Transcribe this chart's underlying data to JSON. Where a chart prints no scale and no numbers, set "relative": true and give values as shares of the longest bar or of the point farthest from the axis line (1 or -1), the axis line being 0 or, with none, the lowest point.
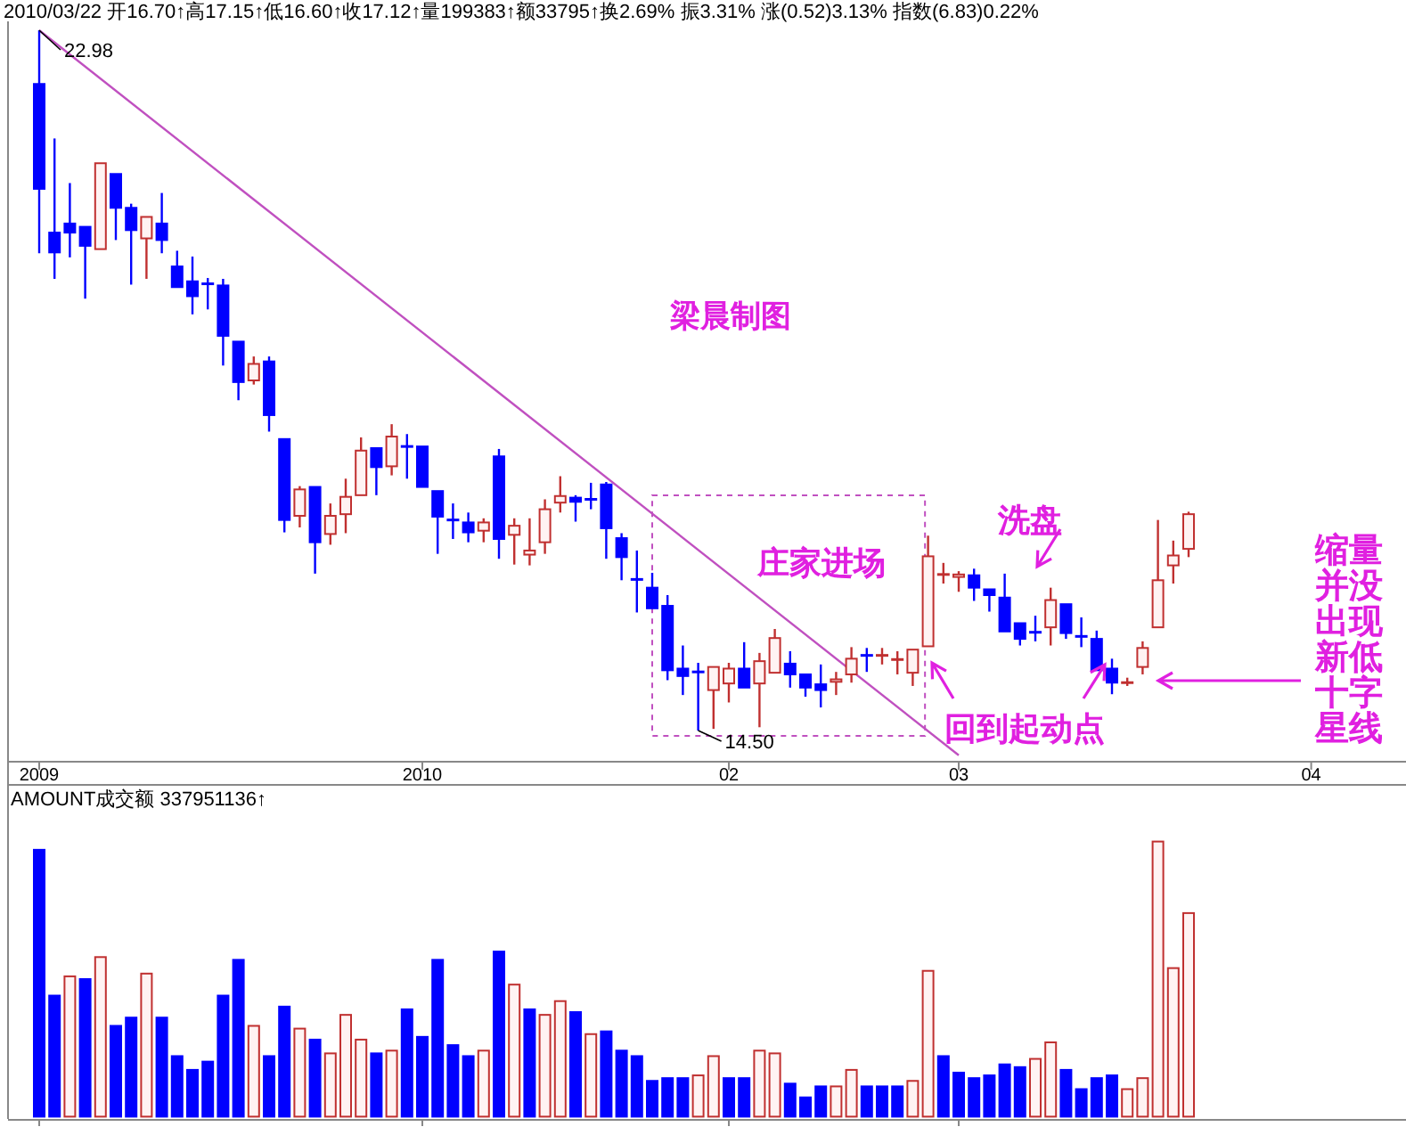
{
  "chart_data": [
    {
      "type": "candlestick",
      "title": "2010/03/22 开16.70↑高17.15↑低16.60↑收17.12↑量199383↑额33795↑换2.69% 振3.31% 涨(0.52)3.13% 指数(6.83)0.22%",
      "categories": [
        "2009",
        null,
        null,
        null,
        null,
        null,
        null,
        null,
        null,
        null,
        null,
        null,
        null,
        null,
        null,
        null,
        null,
        null,
        null,
        null,
        null,
        null,
        null,
        null,
        null,
        "2010",
        null,
        null,
        null,
        null,
        null,
        null,
        null,
        null,
        null,
        null,
        null,
        null,
        null,
        null,
        null,
        null,
        null,
        null,
        null,
        "02",
        null,
        null,
        null,
        null,
        null,
        null,
        null,
        null,
        null,
        null,
        null,
        null,
        null,
        null,
        "03",
        null,
        null,
        null,
        null,
        null,
        null,
        null,
        null,
        null,
        null,
        null,
        null,
        null,
        null,
        null,
        null,
        null,
        null,
        null,
        null,
        null,
        null,
        "04",
        null,
        null,
        null,
        null,
        null
      ],
      "ohlc": [
        [
          22.33,
          22.98,
          20.28,
          21.06
        ],
        [
          20.53,
          21.67,
          19.97,
          20.29
        ],
        [
          20.64,
          21.13,
          20.23,
          20.53
        ],
        [
          20.6,
          20.6,
          19.73,
          20.37
        ],
        [
          20.33,
          21.37,
          20.33,
          21.37
        ],
        [
          21.24,
          21.24,
          20.44,
          20.83
        ],
        [
          20.83,
          20.88,
          19.9,
          20.56
        ],
        [
          20.46,
          20.72,
          19.97,
          20.72
        ],
        [
          20.64,
          21.01,
          20.28,
          20.44
        ],
        [
          20.12,
          20.31,
          19.87,
          19.87
        ],
        [
          19.94,
          20.24,
          19.54,
          19.76
        ],
        [
          19.91,
          19.98,
          19.6,
          19.91
        ],
        [
          19.89,
          19.97,
          18.92,
          19.28
        ],
        [
          19.21,
          19.21,
          18.5,
          18.72
        ],
        [
          18.74,
          19.03,
          18.69,
          18.94
        ],
        [
          18.97,
          19.03,
          18.12,
          18.32
        ],
        [
          18.03,
          18.03,
          16.9,
          17.05
        ],
        [
          17.1,
          17.46,
          16.96,
          17.42
        ],
        [
          17.45,
          17.45,
          16.4,
          16.78
        ],
        [
          16.88,
          17.25,
          16.75,
          17.1
        ],
        [
          17.12,
          17.55,
          16.89,
          17.33
        ],
        [
          17.35,
          18.05,
          17.35,
          17.89
        ],
        [
          17.92,
          17.92,
          17.35,
          17.69
        ],
        [
          17.7,
          18.21,
          17.59,
          18.06
        ],
        [
          17.94,
          18.09,
          17.55,
          17.94
        ],
        [
          17.94,
          17.94,
          17.45,
          17.45
        ],
        [
          17.4,
          17.4,
          16.64,
          17.09
        ],
        [
          17.05,
          17.25,
          16.82,
          17.05
        ],
        [
          17.02,
          17.14,
          16.78,
          16.9
        ],
        [
          16.92,
          17.07,
          16.78,
          17.02
        ],
        [
          17.82,
          17.91,
          16.58,
          16.82
        ],
        [
          16.87,
          17.07,
          16.51,
          16.98
        ],
        [
          16.63,
          17.07,
          16.5,
          16.68
        ],
        [
          16.78,
          17.3,
          16.64,
          17.18
        ],
        [
          17.26,
          17.58,
          17.14,
          17.34
        ],
        [
          17.32,
          17.35,
          17.03,
          17.27
        ],
        [
          17.3,
          17.5,
          17.18,
          17.3
        ],
        [
          17.48,
          17.51,
          16.58,
          16.95
        ],
        [
          16.83,
          16.89,
          16.32,
          16.6
        ],
        [
          16.33,
          16.68,
          15.93,
          16.33
        ],
        [
          16.23,
          16.41,
          15.98,
          15.98
        ],
        [
          16.01,
          16.14,
          15.11,
          15.23
        ],
        [
          15.25,
          15.53,
          14.93,
          15.16
        ],
        [
          15.21,
          15.32,
          14.5,
          15.21
        ],
        [
          14.99,
          15.27,
          14.52,
          15.27
        ],
        [
          15.07,
          15.32,
          14.84,
          15.25
        ],
        [
          15.25,
          15.57,
          15.02,
          15.02
        ],
        [
          15.07,
          15.44,
          14.54,
          15.34
        ],
        [
          15.2,
          15.73,
          15.2,
          15.62
        ],
        [
          15.31,
          15.46,
          15.02,
          15.18
        ],
        [
          15.18,
          15.18,
          14.91,
          15.02
        ],
        [
          15.06,
          15.3,
          14.78,
          14.99
        ],
        [
          15.09,
          15.21,
          14.93,
          15.12
        ],
        [
          15.18,
          15.51,
          15.08,
          15.37
        ],
        [
          15.41,
          15.5,
          15.21,
          15.41
        ],
        [
          15.41,
          15.5,
          15.3,
          15.41
        ],
        [
          15.36,
          15.46,
          15.18,
          15.36
        ],
        [
          15.2,
          15.48,
          15.04,
          15.48
        ],
        [
          15.52,
          16.86,
          15.52,
          16.61
        ],
        [
          16.39,
          16.53,
          16.28,
          16.39
        ],
        [
          16.36,
          16.43,
          16.18,
          16.39
        ],
        [
          16.38,
          16.46,
          16.07,
          16.23
        ],
        [
          16.21,
          16.21,
          15.94,
          16.14
        ],
        [
          16.11,
          16.4,
          15.7,
          15.7
        ],
        [
          15.8,
          15.8,
          15.53,
          15.61
        ],
        [
          15.69,
          15.89,
          15.58,
          15.69
        ],
        [
          15.75,
          16.23,
          15.53,
          16.08
        ],
        [
          16.03,
          16.03,
          15.61,
          15.68
        ],
        [
          15.64,
          15.87,
          15.51,
          15.64
        ],
        [
          15.61,
          15.71,
          15.23,
          15.23
        ],
        [
          15.25,
          15.37,
          14.94,
          15.08
        ],
        [
          15.08,
          15.14,
          15.04,
          15.08
        ],
        [
          15.27,
          15.58,
          15.18,
          15.5
        ],
        [
          15.75,
          17.05,
          15.75,
          16.32
        ],
        [
          16.5,
          16.8,
          16.28,
          16.62
        ],
        [
          16.7,
          17.15,
          16.6,
          17.12
        ],
        null,
        null,
        null,
        null,
        null,
        null,
        null,
        null,
        null,
        null,
        null,
        null,
        null
      ],
      "colors": [
        "#0000ff",
        "#0000ff",
        "#0000ff",
        "#0000ff",
        "#c03030",
        "#0000ff",
        "#0000ff",
        "#c03030",
        "#0000ff",
        "#0000ff",
        "#0000ff",
        "#0000ff",
        "#0000ff",
        "#0000ff",
        "#c03030",
        "#0000ff",
        "#0000ff",
        "#c03030",
        "#0000ff",
        "#c03030",
        "#c03030",
        "#c03030",
        "#0000ff",
        "#c03030",
        "#0000ff",
        "#0000ff",
        "#0000ff",
        "#0000ff",
        "#0000ff",
        "#c03030",
        "#0000ff",
        "#c03030",
        "#c03030",
        "#c03030",
        "#c03030",
        "#0000ff",
        "#0000ff",
        "#0000ff",
        "#0000ff",
        "#0000ff",
        "#0000ff",
        "#0000ff",
        "#0000ff",
        "#0000ff",
        "#c03030",
        "#c03030",
        "#0000ff",
        "#c03030",
        "#c03030",
        "#0000ff",
        "#0000ff",
        "#0000ff",
        "#c03030",
        "#c03030",
        "#0000ff",
        "#c03030",
        "#c03030",
        "#c03030",
        "#c03030",
        "#c03030",
        "#c03030",
        "#0000ff",
        "#0000ff",
        "#0000ff",
        "#0000ff",
        "#0000ff",
        "#c03030",
        "#0000ff",
        "#0000ff",
        "#0000ff",
        "#0000ff",
        "#c03030",
        "#c03030",
        "#c03030",
        "#c03030",
        "#c03030",
        null,
        null,
        null,
        null,
        null,
        null,
        null,
        null,
        null,
        null,
        null,
        null,
        null
      ],
      "series": [
        {
          "type": "line",
          "color": "#c050c0",
          "values": [
            22.98,
            null,
            null,
            null,
            null,
            null,
            null,
            null,
            null,
            null,
            null,
            null,
            null,
            null,
            null,
            null,
            null,
            null,
            null,
            null,
            null,
            null,
            null,
            null,
            null,
            null,
            null,
            null,
            null,
            null,
            null,
            null,
            null,
            null,
            null,
            null,
            null,
            null,
            null,
            null,
            null,
            null,
            null,
            null,
            null,
            null,
            null,
            null,
            null,
            null,
            null,
            null,
            null,
            null,
            null,
            null,
            null,
            null,
            null,
            null,
            14.2,
            null,
            null,
            null,
            null,
            null,
            null,
            null,
            null,
            null,
            null,
            null,
            null,
            null,
            null,
            null,
            null,
            null,
            null,
            null,
            null,
            null,
            null,
            null,
            null,
            null,
            null,
            null,
            null
          ]
        }
      ],
      "annotations": [
        "22.98",
        "14.50",
        "梁晨制图",
        "庄家进场",
        "洗盘",
        "回到起动点",
        "缩量并没出现新低十字星线"
      ]
    },
    {
      "type": "bar",
      "title": "AMOUNT成交额 337951136↑",
      "relative": true,
      "tick_labels": false,
      "categories": [
        "2009",
        null,
        null,
        null,
        null,
        null,
        null,
        null,
        null,
        null,
        null,
        null,
        null,
        null,
        null,
        null,
        null,
        null,
        null,
        null,
        null,
        null,
        null,
        null,
        null,
        "2010",
        null,
        null,
        null,
        null,
        null,
        null,
        null,
        null,
        null,
        null,
        null,
        null,
        null,
        null,
        null,
        null,
        null,
        null,
        null,
        "02",
        null,
        null,
        null,
        null,
        null,
        null,
        null,
        null,
        null,
        null,
        null,
        null,
        null,
        null,
        "03",
        null,
        null,
        null,
        null,
        null,
        null,
        null,
        null,
        null,
        null,
        null,
        null,
        null,
        null,
        null
      ],
      "values": [
        0.97,
        0.44,
        0.51,
        0.5,
        0.58,
        0.33,
        0.36,
        0.52,
        0.36,
        0.22,
        0.17,
        0.2,
        0.44,
        0.57,
        0.33,
        0.22,
        0.4,
        0.32,
        0.28,
        0.23,
        0.37,
        0.28,
        0.23,
        0.24,
        0.39,
        0.29,
        0.57,
        0.26,
        0.22,
        0.24,
        0.6,
        0.48,
        0.39,
        0.37,
        0.42,
        0.38,
        0.3,
        0.31,
        0.24,
        0.22,
        0.13,
        0.14,
        0.14,
        0.15,
        0.22,
        0.14,
        0.14,
        0.24,
        0.23,
        0.12,
        0.07,
        0.11,
        0.11,
        0.17,
        0.11,
        0.11,
        0.11,
        0.13,
        0.53,
        0.22,
        0.16,
        0.14,
        0.15,
        0.19,
        0.18,
        0.21,
        0.27,
        0.17,
        0.1,
        0.14,
        0.15,
        0.1,
        0.14,
        1,
        0.54,
        0.74
      ],
      "colors": [
        "#0000ff",
        "#0000ff",
        "#c03030",
        "#0000ff",
        "#c03030",
        "#0000ff",
        "#0000ff",
        "#c03030",
        "#0000ff",
        "#0000ff",
        "#0000ff",
        "#0000ff",
        "#0000ff",
        "#0000ff",
        "#c03030",
        "#0000ff",
        "#0000ff",
        "#c03030",
        "#0000ff",
        "#c03030",
        "#c03030",
        "#c03030",
        "#0000ff",
        "#c03030",
        "#0000ff",
        "#0000ff",
        "#0000ff",
        "#0000ff",
        "#0000ff",
        "#c03030",
        "#0000ff",
        "#c03030",
        "#0000ff",
        "#c03030",
        "#c03030",
        "#0000ff",
        "#c03030",
        "#0000ff",
        "#0000ff",
        "#0000ff",
        "#0000ff",
        "#0000ff",
        "#0000ff",
        "#c03030",
        "#c03030",
        "#0000ff",
        "#0000ff",
        "#c03030",
        "#c03030",
        "#0000ff",
        "#0000ff",
        "#0000ff",
        "#c03030",
        "#c03030",
        "#0000ff",
        "#0000ff",
        "#0000ff",
        "#c03030",
        "#c03030",
        "#0000ff",
        "#0000ff",
        "#0000ff",
        "#0000ff",
        "#0000ff",
        "#0000ff",
        "#c03030",
        "#c03030",
        "#0000ff",
        "#0000ff",
        "#0000ff",
        "#0000ff",
        "#c03030",
        "#c03030",
        "#c03030",
        "#c03030",
        "#c03030"
      ]
    }
  ]
}
